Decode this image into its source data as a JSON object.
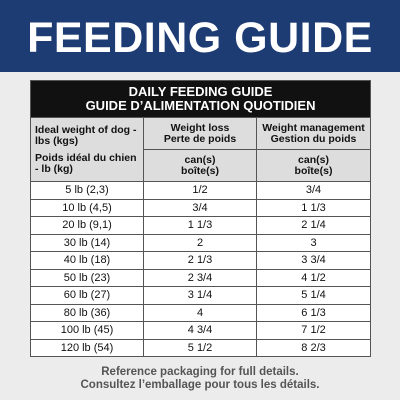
{
  "header": {
    "title": "FEEDING GUIDE"
  },
  "table": {
    "title": [
      "DAILY FEEDING GUIDE",
      "GUIDE D’ALIMENTATION QUOTIDIEN"
    ],
    "columns": [
      {
        "label": [
          "Ideal weight of dog - lbs (kgs)",
          "Poids idéal du chien - lb (kg)"
        ]
      },
      {
        "label": [
          "Weight loss",
          "Perte de poids"
        ],
        "unit": [
          "can(s)",
          "boîte(s)"
        ]
      },
      {
        "label": [
          "Weight management",
          "Gestion du poids"
        ],
        "unit": [
          "can(s)",
          "boîte(s)"
        ]
      }
    ],
    "rows": [
      [
        "5 lb (2,3)",
        "1/2",
        "3/4"
      ],
      [
        "10 lb (4,5)",
        "3/4",
        "1 1/3"
      ],
      [
        "20 lb (9,1)",
        "1 1/3",
        "2 1/4"
      ],
      [
        "30 lb (14)",
        "2",
        "3"
      ],
      [
        "40 lb (18)",
        "2 1/3",
        "3 3/4"
      ],
      [
        "50 lb (23)",
        "2 3/4",
        "4 1/2"
      ],
      [
        "60 lb (27)",
        "3 1/4",
        "5 1/4"
      ],
      [
        "80 lb (36)",
        "4",
        "6 1/3"
      ],
      [
        "100 lb (45)",
        "4 3/4",
        "7 1/2"
      ],
      [
        "120 lb (54)",
        "5 1/2",
        "8 2/3"
      ]
    ]
  },
  "footer": [
    "Reference packaging for full details.",
    "Consultez l’emballage pour tous les détails."
  ]
}
